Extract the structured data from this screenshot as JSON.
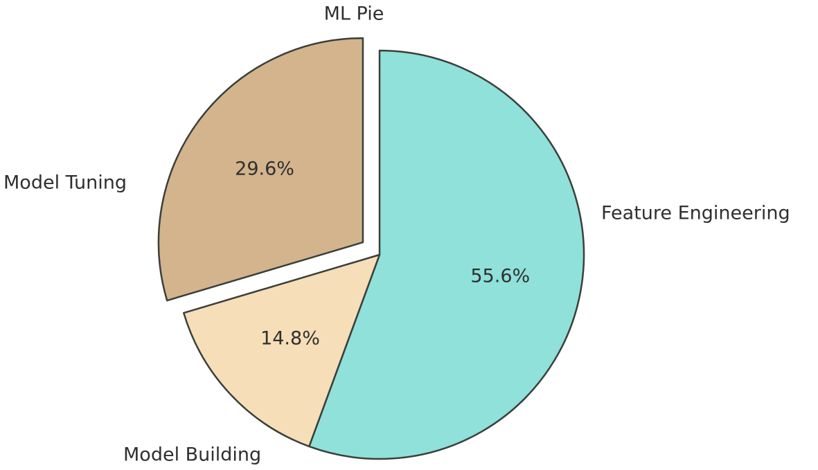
{
  "chart_data": {
    "type": "pie",
    "title": "ML Pie",
    "slices": [
      {
        "label": "Feature Engineering",
        "value": 55.6,
        "pct_label": "55.6%",
        "color": "#8fe1d9",
        "exploded": false
      },
      {
        "label": "Model Building",
        "value": 14.8,
        "pct_label": "14.8%",
        "color": "#f5deb8",
        "exploded": false
      },
      {
        "label": "Model Tuning",
        "value": 29.6,
        "pct_label": "29.6%",
        "color": "#d3b48d",
        "exploded": true
      }
    ],
    "start_angle_deg": 90,
    "direction": "clockwise",
    "edge_color": "#3a3f3a"
  }
}
